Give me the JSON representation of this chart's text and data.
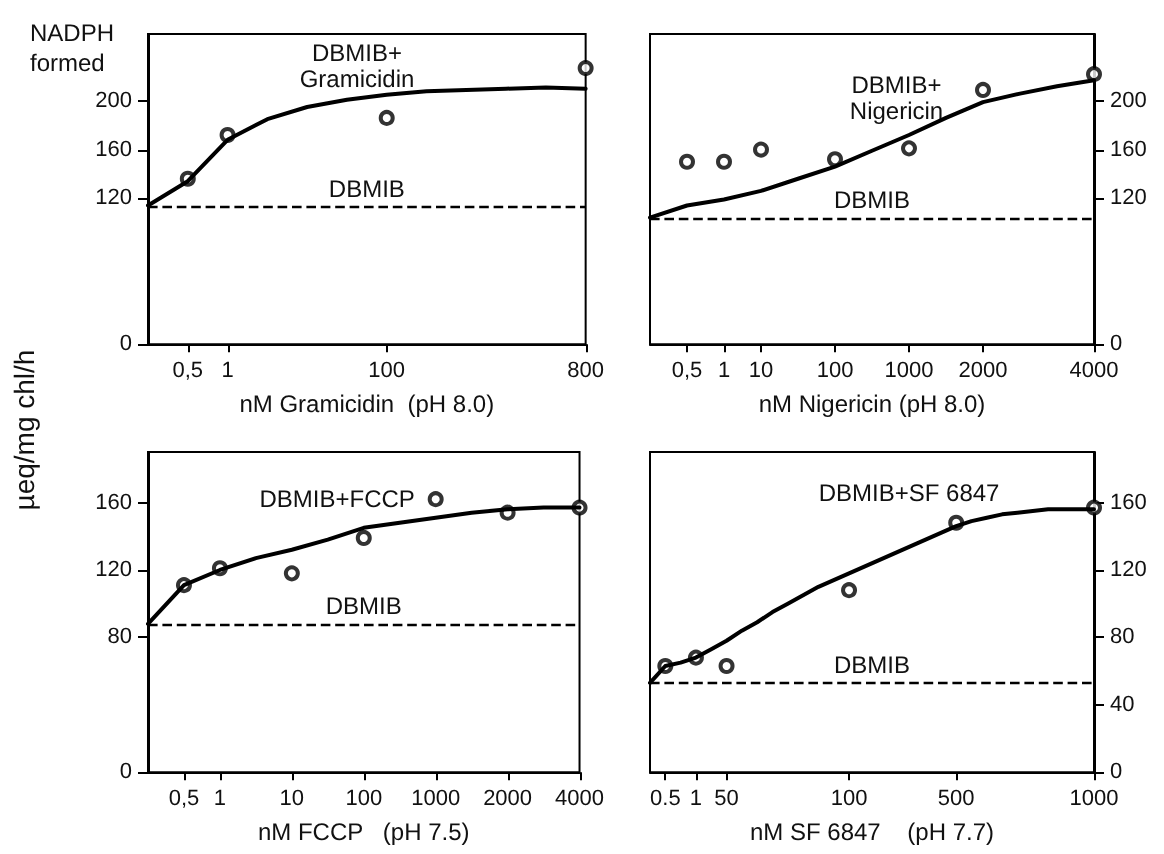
{
  "chart_data": [
    {
      "type": "line",
      "title": "NADPH\nformed",
      "xlabel": "nM Gramicidin  (pH 8.0)",
      "ylabel": "µeq/mg chl/h",
      "categories": [
        null,
        "0,5",
        "1",
        null,
        null,
        null,
        "100",
        null,
        null,
        null,
        null,
        "800"
      ],
      "series": [
        {
          "type": "line",
          "color": "#000000",
          "marker": "none",
          "values": [
            114,
            134,
            168,
            185,
            195,
            201,
            205,
            208,
            209,
            210,
            211,
            210
          ]
        },
        {
          "type": "scatter",
          "color": "#000000",
          "marker": "circle",
          "values": [
            null,
            136,
            172,
            null,
            null,
            null,
            186,
            null,
            null,
            null,
            null,
            227
          ]
        }
      ],
      "ylim": [
        0,
        255
      ],
      "yticks": [
        0,
        120,
        160,
        200
      ],
      "ref_lines": [
        {
          "axis": "y",
          "value": 113,
          "label": "DBMIB",
          "line_style": "dashed",
          "color": "#000000"
        }
      ],
      "annotations": [
        "DBMIB+\nGramicidin"
      ]
    },
    {
      "type": "line",
      "xlabel": "nM Nigericin (pH 8.0)",
      "categories": [
        null,
        "0,5",
        "1",
        "10",
        null,
        "100",
        null,
        "1000",
        null,
        "2000",
        null,
        null,
        "4000"
      ],
      "series": [
        {
          "type": "line",
          "color": "#000000",
          "marker": "none",
          "axis": "y2",
          "values": [
            104,
            114,
            119,
            126,
            136,
            146,
            159,
            172,
            186,
            199,
            206,
            212,
            217
          ]
        },
        {
          "type": "scatter",
          "color": "#000000",
          "marker": "circle",
          "axis": "y2",
          "values": [
            null,
            150,
            150,
            160,
            null,
            152,
            null,
            161,
            null,
            209,
            null,
            null,
            222
          ]
        }
      ],
      "y2lim": [
        0,
        255
      ],
      "y2ticks": [
        0,
        120,
        160,
        200
      ],
      "ref_lines": [
        {
          "axis": "y2",
          "value": 104,
          "label": "DBMIB",
          "line_style": "dashed",
          "color": "#000000"
        }
      ],
      "annotations": [
        "DBMIB+\nNigericin"
      ]
    },
    {
      "type": "line",
      "xlabel": "nM FCCP   (pH 7.5)",
      "categories": [
        null,
        "0,5",
        "1",
        null,
        "10",
        null,
        "100",
        null,
        "1000",
        null,
        "2000",
        null,
        "4000"
      ],
      "series": [
        {
          "type": "line",
          "color": "#000000",
          "marker": "none",
          "values": [
            88,
            111,
            120,
            127,
            132,
            138,
            145,
            148,
            151,
            154,
            156,
            157,
            157
          ]
        },
        {
          "type": "scatter",
          "color": "#000000",
          "marker": "circle",
          "values": [
            null,
            111,
            121,
            null,
            118,
            null,
            139,
            null,
            162,
            null,
            154,
            null,
            157
          ]
        }
      ],
      "ylim": [
        0,
        190
      ],
      "yticks": [
        0,
        80,
        120,
        160
      ],
      "ref_lines": [
        {
          "axis": "y",
          "value": 88,
          "label": "DBMIB",
          "line_style": "dashed",
          "color": "#000000"
        }
      ],
      "annotations": [
        "DBMIB+FCCP"
      ]
    },
    {
      "type": "line",
      "xlabel": "nM SF 6847    (pH 7.7)",
      "categories": [
        null,
        "0.5",
        null,
        "1",
        null,
        "50",
        null,
        null,
        null,
        null,
        null,
        null,
        null,
        "100",
        null,
        null,
        null,
        null,
        null,
        null,
        "500",
        null,
        null,
        null,
        null,
        null,
        null,
        null,
        null,
        "1000"
      ],
      "series": [
        {
          "type": "line",
          "color": "#000000",
          "marker": "none",
          "axis": "y2",
          "values": [
            53,
            63,
            65,
            68,
            73,
            78,
            84,
            89,
            95,
            100,
            105,
            110,
            114,
            118,
            122,
            126,
            130,
            134,
            138,
            142,
            146,
            149,
            151,
            153,
            154,
            155,
            156,
            156,
            156,
            156
          ]
        },
        {
          "type": "scatter",
          "color": "#000000",
          "marker": "circle",
          "axis": "y2",
          "values": [
            null,
            63,
            null,
            68,
            null,
            63,
            null,
            null,
            null,
            null,
            null,
            null,
            null,
            108,
            null,
            null,
            null,
            null,
            null,
            null,
            148,
            null,
            null,
            null,
            null,
            null,
            null,
            null,
            null,
            157
          ]
        }
      ],
      "y2lim": [
        0,
        190
      ],
      "y2ticks": [
        0,
        40,
        80,
        120,
        160
      ],
      "ref_lines": [
        {
          "axis": "y2",
          "value": 53,
          "label": "DBMIB",
          "line_style": "dashed",
          "color": "#000000"
        }
      ],
      "annotations": [
        "DBMIB+SF 6847"
      ]
    }
  ]
}
